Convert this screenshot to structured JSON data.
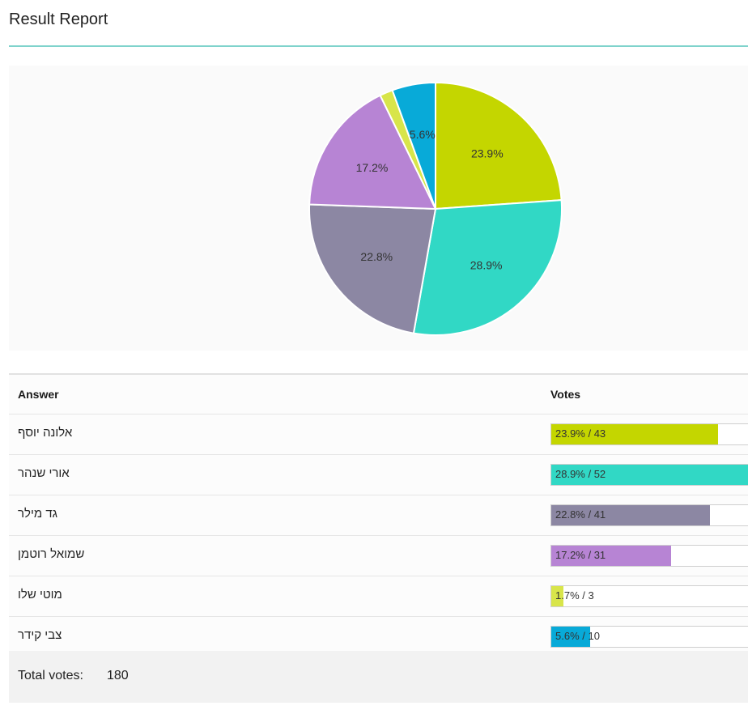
{
  "header": {
    "title": "Result Report"
  },
  "chart_data": {
    "type": "pie",
    "categories": [
      "אלונה יוסף",
      "אורי שנהר",
      "גד מילר",
      "שמואל רוטמן",
      "מוטי שלו",
      "צבי קידר"
    ],
    "values": [
      43,
      52,
      41,
      31,
      3,
      10
    ],
    "percent_labels": [
      "23.9%",
      "28.9%",
      "22.8%",
      "17.2%",
      "",
      "5.6%"
    ],
    "colors": [
      "#c4d600",
      "#31d8c5",
      "#8c87a3",
      "#b784d4",
      "#d8e54a",
      "#08aad8"
    ],
    "start_angle_deg": -90,
    "direction": "clockwise"
  },
  "table": {
    "answer_header": "Answer",
    "votes_header": "Votes",
    "rows": [
      {
        "answer": "אלונה יוסף",
        "votes_label": "23.9% / 43",
        "percent": 23.9,
        "color": "#c4d600"
      },
      {
        "answer": "אורי שנהר",
        "votes_label": "28.9% / 52",
        "percent": 28.9,
        "color": "#31d8c5"
      },
      {
        "answer": "גד מילר",
        "votes_label": "22.8% / 41",
        "percent": 22.8,
        "color": "#8c87a3"
      },
      {
        "answer": "שמואל רוטמן",
        "votes_label": "17.2% / 31",
        "percent": 17.2,
        "color": "#b784d4"
      },
      {
        "answer": "מוטי שלו",
        "votes_label": "1.7% / 3",
        "percent": 1.7,
        "color": "#d8e54a"
      },
      {
        "answer": "צבי קידר",
        "votes_label": "5.6% / 10",
        "percent": 5.6,
        "color": "#08aad8"
      }
    ]
  },
  "footer": {
    "total_label": "Total votes:",
    "total_value": "180"
  }
}
